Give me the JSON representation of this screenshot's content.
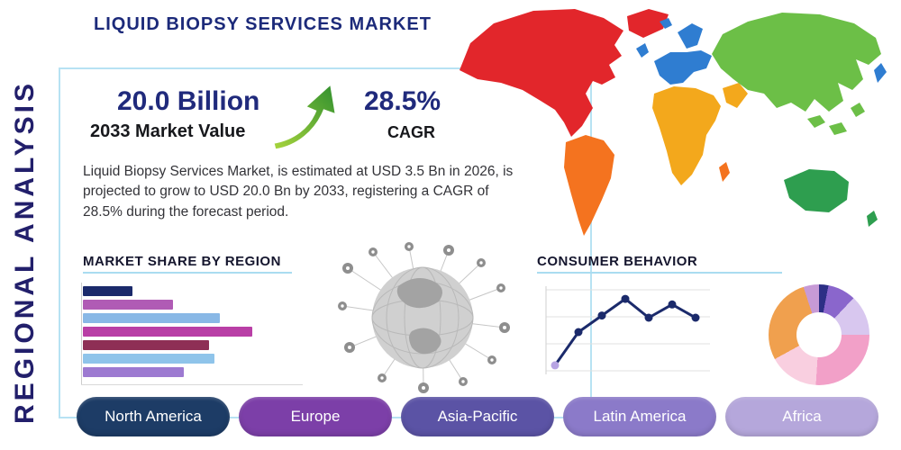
{
  "page": {
    "side_label": "REGIONAL ANALYSIS",
    "title": "LIQUID BIOPSY SERVICES MARKET"
  },
  "stats": {
    "market_value": "20.0 Billion",
    "market_value_caption": "2033 Market Value",
    "cagr_value": "28.5%",
    "cagr_caption": "CAGR",
    "description": "Liquid Biopsy Services Market, is estimated at USD 3.5 Bn in 2026, is projected to grow to USD 20.0 Bn by 2033, registering a CAGR of 28.5% during the forecast period.",
    "growth_arrow_colors": [
      "#a9d53d",
      "#2f8f2f"
    ]
  },
  "sections": {
    "market_share_title": "MARKET SHARE BY REGION",
    "consumer_behavior_title": "CONSUMER BEHAVIOR"
  },
  "region_buttons": [
    {
      "label": "North America",
      "color": "#1d3c66"
    },
    {
      "label": "Europe",
      "color": "#7c3fa8"
    },
    {
      "label": "Asia-Pacific",
      "color": "#5b53a5"
    },
    {
      "label": "Latin America",
      "color": "#8b7ac9"
    },
    {
      "label": "Africa",
      "color": "#b5a7db"
    }
  ],
  "map": {
    "colors": {
      "north-america": "#e2262b",
      "greenland": "#e2262b",
      "south-america": "#f4731f",
      "europe": "#2f7dd1",
      "uk": "#2f7dd1",
      "scandinavia": "#2f7dd1",
      "iceland": "#2f7dd1",
      "africa": "#f3a81c",
      "arabia": "#f3a81c",
      "madagascar": "#f4731f",
      "asia": "#6cbf47",
      "japan": "#2f7dd1",
      "se-asia": "#6cbf47",
      "australia": "#2e9e4f",
      "new-zealand": "#2e9e4f"
    }
  },
  "chart_data": [
    {
      "type": "bar",
      "orientation": "horizontal",
      "title": "MARKET SHARE BY REGION",
      "categories": [
        "",
        "",
        "",
        "",
        "",
        "",
        ""
      ],
      "values": [
        55,
        100,
        152,
        188,
        140,
        146,
        112
      ],
      "units": "relative length, no axis labels shown",
      "colors": [
        "#1b2a6b",
        "#b05bb5",
        "#89b8e6",
        "#b93fa6",
        "#8e2f55",
        "#8fc4ea",
        "#9d7ad1"
      ],
      "grid": "left and bottom axis lines only"
    },
    {
      "type": "line",
      "title": "CONSUMER BEHAVIOR",
      "x": [
        1,
        2,
        3,
        4,
        5,
        6,
        7
      ],
      "values": [
        2,
        5,
        6.5,
        8,
        6.3,
        7.5,
        6.3
      ],
      "units": "relative, no axis labels shown",
      "line_color": "#1b2a6b",
      "first_point_color": "#b7a4e3",
      "grid": "horizontal lines"
    },
    {
      "type": "pie",
      "title": "",
      "slices": [
        {
          "label": "",
          "value": 3,
          "color": "#2c2f86"
        },
        {
          "label": "",
          "value": 9,
          "color": "#8a66cc"
        },
        {
          "label": "",
          "value": 13,
          "color": "#d8c7ef"
        },
        {
          "label": "",
          "value": 26,
          "color": "#f2a0c8"
        },
        {
          "label": "",
          "value": 16,
          "color": "#f9cfe0"
        },
        {
          "label": "",
          "value": 28,
          "color": "#f0a04e"
        },
        {
          "label": "",
          "value": 5,
          "color": "#c79ad6"
        }
      ],
      "donut": true
    }
  ]
}
